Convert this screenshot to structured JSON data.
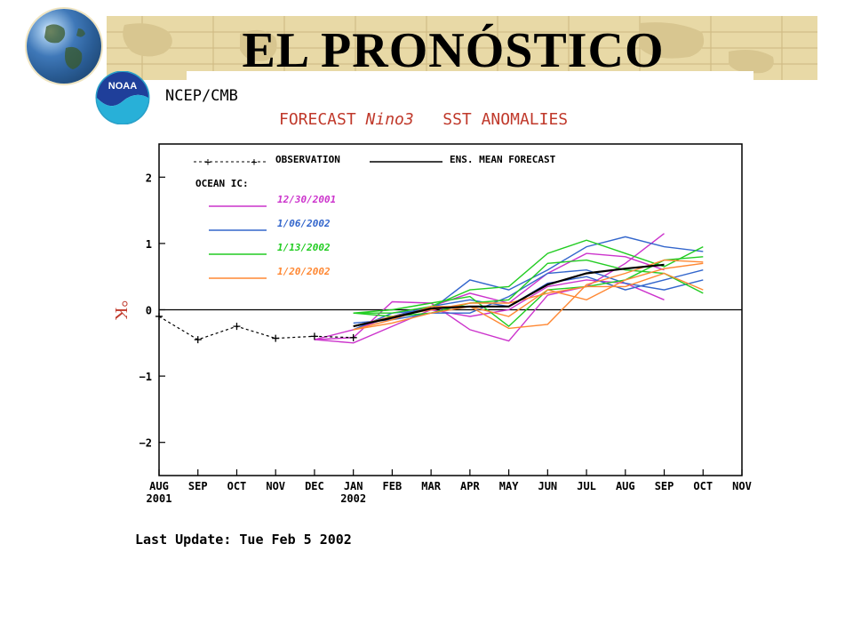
{
  "slide": {
    "title": "EL PRONÓSTICO",
    "agency": "NCEP/CMB",
    "noaa_logo_text": "NOAA",
    "forecast_title": {
      "prefix": "FORECAST ",
      "italic": "Nino3",
      "suffix": "   SST ANOMALIES"
    },
    "last_update": "Last Update: Tue Feb 5 2002"
  },
  "colors": {
    "banner": "#e8d9a6",
    "title_red": "#c0392b",
    "ic_12_30": "#cc33cc",
    "ic_1_06": "#3366cc",
    "ic_1_13": "#22cc22",
    "ic_1_20": "#ff8833"
  },
  "chart_data": {
    "type": "line",
    "ylabel": "°K",
    "ylim": [
      -2.5,
      2.5
    ],
    "yticks": [
      2,
      1,
      0,
      -1,
      -2
    ],
    "ytick_labels": [
      "2",
      "1",
      "0",
      "−1",
      "−2"
    ],
    "x_categories": [
      "AUG",
      "SEP",
      "OCT",
      "NOV",
      "DEC",
      "JAN",
      "FEB",
      "MAR",
      "APR",
      "MAY",
      "JUN",
      "JUL",
      "AUG",
      "SEP",
      "OCT",
      "NOV"
    ],
    "x_sublabels": [
      {
        "index": 0,
        "text": "2001"
      },
      {
        "index": 5,
        "text": "2002"
      }
    ],
    "legend": {
      "observation": "OBSERVATION",
      "ens_mean": "ENS. MEAN FORECAST",
      "ocean_ic": "OCEAN IC:",
      "ic_dates": [
        "12/30/2001",
        "1/06/2002",
        "1/13/2002",
        "1/20/2002"
      ]
    },
    "observation": {
      "x": [
        0,
        1,
        2,
        3,
        4,
        5
      ],
      "y": [
        -0.1,
        -0.45,
        -0.25,
        -0.43,
        -0.4,
        -0.42
      ]
    },
    "ens_mean": {
      "x": [
        5,
        6,
        7,
        8,
        9,
        10,
        11,
        12,
        13
      ],
      "y": [
        -0.25,
        -0.12,
        0.02,
        0.05,
        0.05,
        0.38,
        0.55,
        0.62,
        0.68
      ]
    },
    "members": [
      {
        "group": 0,
        "x": [
          4,
          5,
          6,
          7,
          8,
          9,
          10,
          11,
          12,
          13
        ],
        "y": [
          -0.45,
          -0.42,
          0.12,
          0.1,
          -0.3,
          -0.47,
          0.22,
          0.35,
          0.7,
          1.15
        ]
      },
      {
        "group": 0,
        "x": [
          4,
          5,
          6,
          7,
          8,
          9,
          10,
          11,
          12,
          13
        ],
        "y": [
          -0.45,
          -0.3,
          -0.1,
          0.05,
          0.25,
          0.1,
          0.55,
          0.85,
          0.8,
          0.6
        ]
      },
      {
        "group": 0,
        "x": [
          4,
          5,
          6,
          7,
          8,
          9,
          10,
          11,
          12,
          13
        ],
        "y": [
          -0.45,
          -0.5,
          -0.25,
          0.0,
          -0.1,
          0.0,
          0.35,
          0.45,
          0.4,
          0.15
        ]
      },
      {
        "group": 1,
        "x": [
          5,
          6,
          7,
          8,
          9,
          10,
          11,
          12,
          13,
          14
        ],
        "y": [
          -0.3,
          -0.05,
          0.0,
          0.45,
          0.3,
          0.6,
          0.95,
          1.1,
          0.95,
          0.88
        ]
      },
      {
        "group": 1,
        "x": [
          5,
          6,
          7,
          8,
          9,
          10,
          11,
          12,
          13,
          14
        ],
        "y": [
          -0.25,
          -0.1,
          0.05,
          0.15,
          0.05,
          0.4,
          0.5,
          0.3,
          0.45,
          0.6
        ]
      },
      {
        "group": 1,
        "x": [
          5,
          6,
          7,
          8,
          9,
          10,
          11,
          12,
          13,
          14
        ],
        "y": [
          -0.2,
          -0.15,
          -0.05,
          -0.05,
          0.2,
          0.55,
          0.6,
          0.4,
          0.3,
          0.45
        ]
      },
      {
        "group": 2,
        "x": [
          5,
          6,
          7,
          8,
          9,
          10,
          11,
          12,
          13,
          14
        ],
        "y": [
          -0.05,
          -0.05,
          0.05,
          0.3,
          0.35,
          0.85,
          1.05,
          0.85,
          0.65,
          0.95
        ]
      },
      {
        "group": 2,
        "x": [
          5,
          6,
          7,
          8,
          9,
          10,
          11,
          12,
          13,
          14
        ],
        "y": [
          -0.05,
          0.0,
          0.1,
          0.2,
          -0.25,
          0.3,
          0.35,
          0.45,
          0.75,
          0.8
        ]
      },
      {
        "group": 2,
        "x": [
          5,
          6,
          7,
          8,
          9,
          10,
          11,
          12,
          13,
          14
        ],
        "y": [
          -0.05,
          -0.1,
          -0.05,
          0.1,
          0.15,
          0.7,
          0.75,
          0.6,
          0.55,
          0.25
        ]
      },
      {
        "group": 3,
        "x": [
          5,
          6,
          7,
          8,
          9,
          10,
          11,
          12,
          13,
          14
        ],
        "y": [
          -0.3,
          -0.2,
          -0.05,
          0.05,
          -0.28,
          -0.22,
          0.38,
          0.55,
          0.75,
          0.72
        ]
      },
      {
        "group": 3,
        "x": [
          5,
          6,
          7,
          8,
          9,
          10,
          11,
          12,
          13,
          14
        ],
        "y": [
          -0.3,
          -0.15,
          0.05,
          0.05,
          -0.1,
          0.3,
          0.15,
          0.45,
          0.62,
          0.7
        ]
      },
      {
        "group": 3,
        "x": [
          5,
          6,
          7,
          8,
          9,
          10,
          11,
          12,
          13,
          14
        ],
        "y": [
          -0.25,
          -0.1,
          0.0,
          0.1,
          0.1,
          0.25,
          0.35,
          0.35,
          0.55,
          0.3
        ]
      }
    ]
  }
}
